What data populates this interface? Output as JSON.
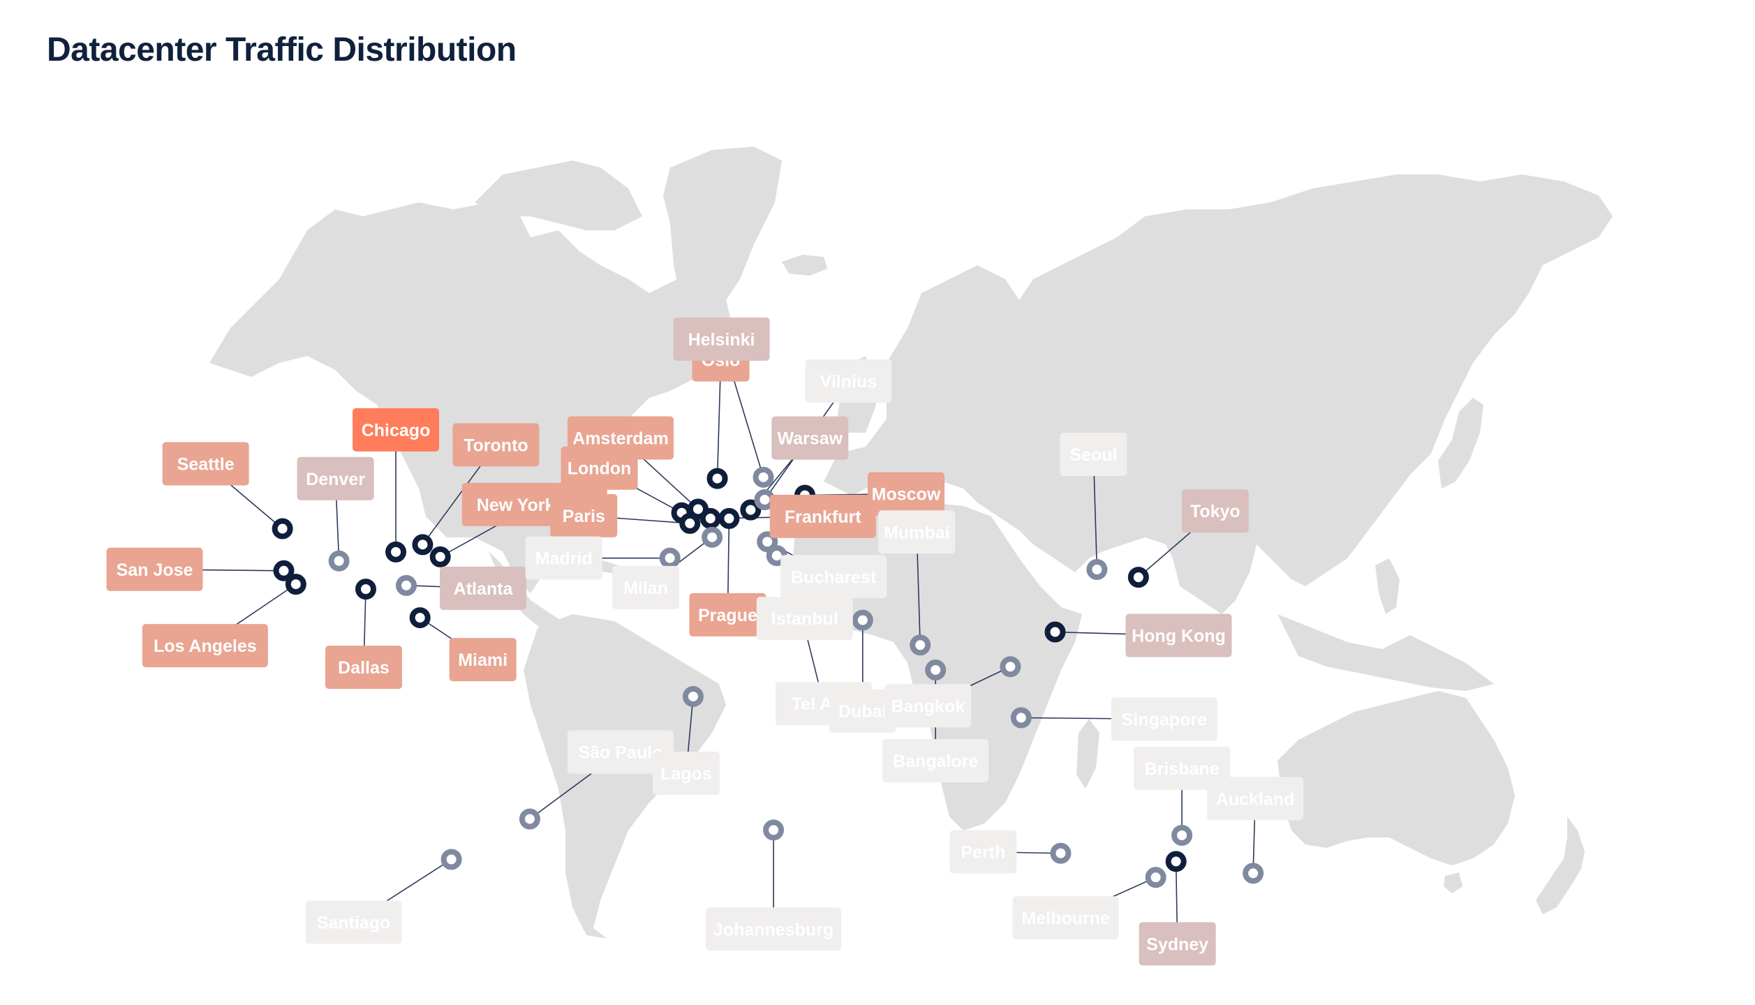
{
  "title": "Datacenter Traffic Distribution",
  "colors": {
    "land": "#dedede",
    "pin_active": "#0f1e3a",
    "pin_inactive": "#7f8aa0",
    "leader": "#2b3a5a",
    "label_text": "#ffffff",
    "traffic_scale": [
      "#f1eeee",
      "#d9bfbd",
      "#e9a492",
      "#ff7d5a"
    ]
  },
  "datacenters": [
    {
      "name": "Seattle",
      "lat": 47.6,
      "lon": -122.3,
      "traffic_level": 0.8,
      "active": true
    },
    {
      "name": "San Jose",
      "lat": 37.3,
      "lon": -121.9,
      "traffic_level": 0.85,
      "active": true
    },
    {
      "name": "Los Angeles",
      "lat": 34.0,
      "lon": -118.2,
      "traffic_level": 0.87,
      "active": true
    },
    {
      "name": "Denver",
      "lat": 39.7,
      "lon": -105.0,
      "traffic_level": 0.3,
      "active": false
    },
    {
      "name": "Dallas",
      "lat": 32.8,
      "lon": -96.8,
      "traffic_level": 0.85,
      "active": true
    },
    {
      "name": "Chicago",
      "lat": 41.9,
      "lon": -87.6,
      "traffic_level": 1.0,
      "active": true
    },
    {
      "name": "Toronto",
      "lat": 43.7,
      "lon": -79.4,
      "traffic_level": 0.82,
      "active": true
    },
    {
      "name": "New York City",
      "lat": 40.7,
      "lon": -74.0,
      "traffic_level": 0.92,
      "active": true
    },
    {
      "name": "Atlanta",
      "lat": 33.7,
      "lon": -84.4,
      "traffic_level": 0.35,
      "active": false
    },
    {
      "name": "Miami",
      "lat": 25.8,
      "lon": -80.2,
      "traffic_level": 0.6,
      "active": true
    },
    {
      "name": "São Paulo",
      "lat": -23.5,
      "lon": -46.6,
      "traffic_level": 0.15,
      "active": false
    },
    {
      "name": "Santiago",
      "lat": -33.4,
      "lon": -70.6,
      "traffic_level": 0.08,
      "active": false
    },
    {
      "name": "London",
      "lat": 51.5,
      "lon": -0.1,
      "traffic_level": 0.88,
      "active": true
    },
    {
      "name": "Paris",
      "lat": 48.9,
      "lon": 2.4,
      "traffic_level": 0.82,
      "active": true
    },
    {
      "name": "Amsterdam",
      "lat": 52.4,
      "lon": 4.9,
      "traffic_level": 0.75,
      "active": true
    },
    {
      "name": "Frankfurt",
      "lat": 50.1,
      "lon": 8.7,
      "traffic_level": 0.92,
      "active": true
    },
    {
      "name": "Madrid",
      "lat": 40.4,
      "lon": -3.7,
      "traffic_level": 0.12,
      "active": false
    },
    {
      "name": "Milan",
      "lat": 45.5,
      "lon": 9.2,
      "traffic_level": 0.15,
      "active": false
    },
    {
      "name": "Prague",
      "lat": 50.1,
      "lon": 14.4,
      "traffic_level": 0.7,
      "active": true
    },
    {
      "name": "Oslo",
      "lat": 59.9,
      "lon": 10.8,
      "traffic_level": 0.6,
      "active": true
    },
    {
      "name": "Helsinki",
      "lat": 60.2,
      "lon": 24.9,
      "traffic_level": 0.45,
      "active": false
    },
    {
      "name": "Warsaw",
      "lat": 52.2,
      "lon": 21.0,
      "traffic_level": 0.4,
      "active": true
    },
    {
      "name": "Vilnius",
      "lat": 54.7,
      "lon": 25.3,
      "traffic_level": 0.05,
      "active": false
    },
    {
      "name": "Moscow",
      "lat": 55.8,
      "lon": 37.6,
      "traffic_level": 0.72,
      "active": true
    },
    {
      "name": "Bucharest",
      "lat": 44.4,
      "lon": 26.1,
      "traffic_level": 0.08,
      "active": false
    },
    {
      "name": "Istanbul",
      "lat": 41.0,
      "lon": 29.0,
      "traffic_level": 0.1,
      "active": false
    },
    {
      "name": "Tel Aviv",
      "lat": 32.1,
      "lon": 34.8,
      "traffic_level": 0.1,
      "active": false
    },
    {
      "name": "Dubai",
      "lat": 25.2,
      "lon": 55.3,
      "traffic_level": 0.08,
      "active": false
    },
    {
      "name": "Mumbai",
      "lat": 19.1,
      "lon": 72.9,
      "traffic_level": 0.2,
      "active": false
    },
    {
      "name": "Bangalore",
      "lat": 13.0,
      "lon": 77.6,
      "traffic_level": 0.08,
      "active": false
    },
    {
      "name": "Bangkok",
      "lat": 13.8,
      "lon": 100.5,
      "traffic_level": 0.12,
      "active": false
    },
    {
      "name": "Singapore",
      "lat": 1.3,
      "lon": 103.8,
      "traffic_level": 0.08,
      "active": false
    },
    {
      "name": "Hong Kong",
      "lat": 22.3,
      "lon": 114.2,
      "traffic_level": 0.5,
      "active": true
    },
    {
      "name": "Seoul",
      "lat": 37.6,
      "lon": 127.0,
      "traffic_level": 0.15,
      "active": false
    },
    {
      "name": "Tokyo",
      "lat": 35.7,
      "lon": 139.7,
      "traffic_level": 0.5,
      "active": true
    },
    {
      "name": "Lagos",
      "lat": 6.5,
      "lon": 3.4,
      "traffic_level": 0.05,
      "active": false
    },
    {
      "name": "Johannesburg",
      "lat": -26.2,
      "lon": 28.0,
      "traffic_level": 0.08,
      "active": false
    },
    {
      "name": "Perth",
      "lat": -31.9,
      "lon": 115.9,
      "traffic_level": 0.08,
      "active": false
    },
    {
      "name": "Melbourne",
      "lat": -37.8,
      "lon": 145.0,
      "traffic_level": 0.12,
      "active": false
    },
    {
      "name": "Sydney",
      "lat": -33.9,
      "lon": 151.2,
      "traffic_level": 0.45,
      "active": true
    },
    {
      "name": "Brisbane",
      "lat": -27.5,
      "lon": 153.0,
      "traffic_level": 0.08,
      "active": false
    },
    {
      "name": "Auckland",
      "lat": -36.8,
      "lon": 174.8,
      "traffic_level": 0.08,
      "active": false
    }
  ]
}
